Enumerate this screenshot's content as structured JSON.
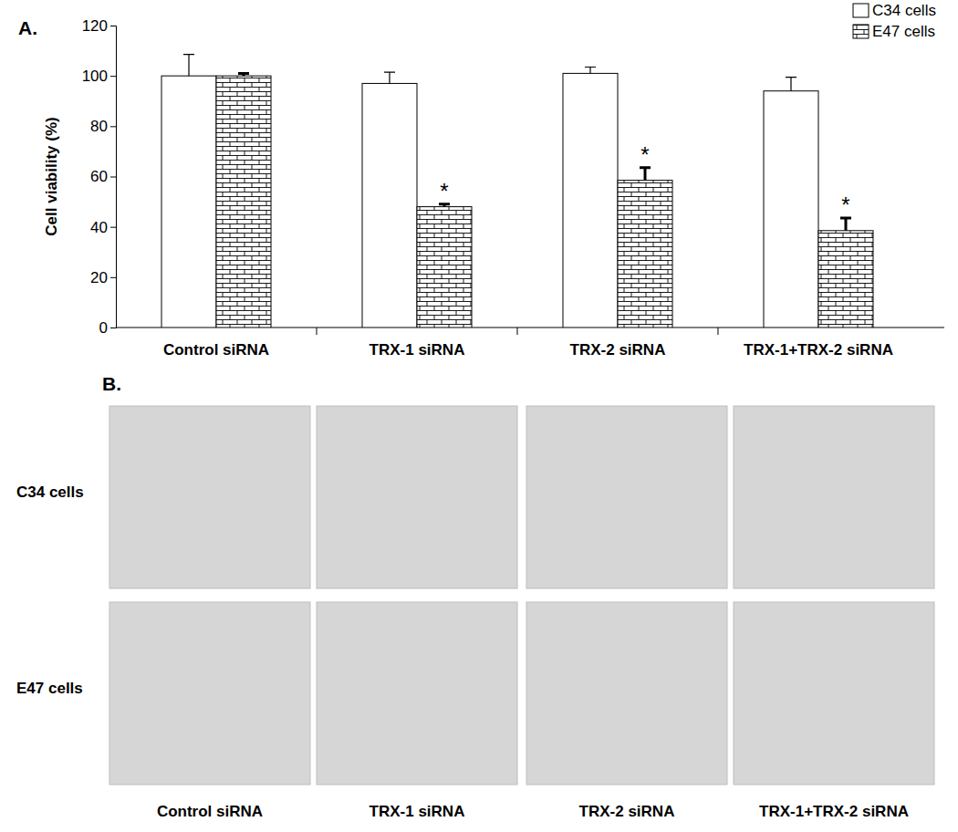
{
  "chart_data": {
    "type": "bar",
    "y_label": "Cell viability (%)",
    "categories": [
      "Control siRNA",
      "TRX-1 siRNA",
      "TRX-2 siRNA",
      "TRX-1+TRX-2 siRNA"
    ],
    "series": [
      {
        "name": "C34 cells",
        "color": "#ffffff",
        "values": [
          100,
          97,
          101,
          94
        ],
        "errors": [
          8.5,
          4.5,
          2.5,
          5.5
        ]
      },
      {
        "name": "E47 cells",
        "color": "#ffffff",
        "values": [
          100,
          48,
          58.5,
          38.5
        ],
        "errors": [
          1,
          1,
          5,
          5
        ],
        "significance": [
          null,
          "*",
          "*",
          "*"
        ]
      }
    ],
    "ylim": [
      0,
      120
    ],
    "yticks": [
      0,
      20,
      40,
      60,
      80,
      100,
      120
    ],
    "grid": false,
    "legend": "upper right"
  },
  "panel_labels": [
    "A.",
    "B."
  ],
  "micrographs": {
    "rows": [
      "C34 cells",
      "E47 cells"
    ],
    "columns": [
      "Control siRNA",
      "TRX-1 siRNA",
      "TRX-2 siRNA",
      "TRX-1+TRX-2 siRNA"
    ]
  }
}
